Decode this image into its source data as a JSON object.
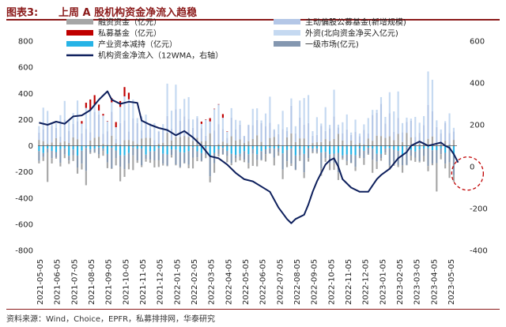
{
  "header": {
    "figure_label": "图表3:",
    "title": "上周 A 股机构资金净流入趋稳"
  },
  "source": "资料来源：Wind，Choice，EPFR，私募排排网，华泰研究",
  "chart_data": {
    "type": "bar",
    "left_axis": {
      "ylim": [
        -800,
        800
      ],
      "ticks": [
        -800,
        -600,
        -400,
        -200,
        0,
        200,
        400,
        600,
        800
      ]
    },
    "right_axis": {
      "ylim": [
        -400,
        600
      ],
      "ticks": [
        -400,
        -200,
        0,
        200,
        400,
        600
      ]
    },
    "x_ticks": [
      "2021-05-05",
      "2021-06-05",
      "2021-07-05",
      "2021-08-05",
      "2021-09-05",
      "2021-10-05",
      "2021-11-05",
      "2021-12-05",
      "2022-01-05",
      "2022-02-05",
      "2022-03-05",
      "2022-04-05",
      "2022-05-05",
      "2022-06-05",
      "2022-07-05",
      "2022-08-05",
      "2022-09-05",
      "2022-10-05",
      "2022-11-05",
      "2022-12-05",
      "2023-01-05",
      "2023-02-05",
      "2023-03-05",
      "2023-04-05",
      "2023-05-05"
    ],
    "legend": [
      {
        "name": "融资资金（亿元）",
        "color": "#a6a6a6",
        "kind": "bar"
      },
      {
        "name": "主动偏股公募基金(新增规模)",
        "color": "#b4c7e7",
        "kind": "bar"
      },
      {
        "name": "私募基金（亿元）",
        "color": "#c00000",
        "kind": "bar"
      },
      {
        "name": "外资(北向资金净买入亿元)",
        "color": "#c5d9f1",
        "kind": "bar"
      },
      {
        "name": "产业资本减持（亿元）",
        "color": "#27b3e6",
        "kind": "bar"
      },
      {
        "name": "一级市场(亿元)",
        "color": "#8497b0",
        "kind": "bar"
      },
      {
        "name": "机构资金净流入（12WMA，右轴）",
        "color": "#0d1f5c",
        "kind": "line"
      }
    ],
    "line_series": {
      "name": "机构资金净流入（12WMA，右轴）",
      "points": [
        [
          0,
          210
        ],
        [
          4,
          200
        ],
        [
          8,
          215
        ],
        [
          12,
          205
        ],
        [
          16,
          240
        ],
        [
          20,
          245
        ],
        [
          24,
          270
        ],
        [
          28,
          320
        ],
        [
          32,
          360
        ],
        [
          34,
          320
        ],
        [
          38,
          300
        ],
        [
          42,
          310
        ],
        [
          46,
          305
        ],
        [
          48,
          220
        ],
        [
          52,
          200
        ],
        [
          56,
          185
        ],
        [
          60,
          175
        ],
        [
          64,
          150
        ],
        [
          68,
          170
        ],
        [
          72,
          140
        ],
        [
          76,
          100
        ],
        [
          80,
          50
        ],
        [
          84,
          40
        ],
        [
          88,
          10
        ],
        [
          92,
          -30
        ],
        [
          96,
          -60
        ],
        [
          100,
          -70
        ],
        [
          104,
          -95
        ],
        [
          108,
          -120
        ],
        [
          112,
          -195
        ],
        [
          116,
          -250
        ],
        [
          118,
          -270
        ],
        [
          120,
          -250
        ],
        [
          124,
          -230
        ],
        [
          126,
          -180
        ],
        [
          128,
          -120
        ],
        [
          130,
          -70
        ],
        [
          132,
          -30
        ],
        [
          134,
          10
        ],
        [
          136,
          30
        ],
        [
          138,
          40
        ],
        [
          140,
          0
        ],
        [
          142,
          -60
        ],
        [
          146,
          -100
        ],
        [
          150,
          -120
        ],
        [
          154,
          -120
        ],
        [
          156,
          -90
        ],
        [
          158,
          -60
        ],
        [
          160,
          -40
        ],
        [
          164,
          -10
        ],
        [
          168,
          40
        ],
        [
          172,
          70
        ],
        [
          174,
          100
        ],
        [
          176,
          110
        ],
        [
          178,
          120
        ],
        [
          180,
          110
        ],
        [
          182,
          100
        ],
        [
          184,
          105
        ],
        [
          186,
          110
        ],
        [
          188,
          115
        ],
        [
          190,
          100
        ],
        [
          192,
          90
        ],
        [
          194,
          60
        ],
        [
          196,
          20
        ]
      ]
    },
    "weekly_bars": "104 weeks, stacked by component (approximate)",
    "annotation": {
      "type": "dashed-circle",
      "color": "#c00000",
      "at_x": "2023-05-05"
    }
  }
}
